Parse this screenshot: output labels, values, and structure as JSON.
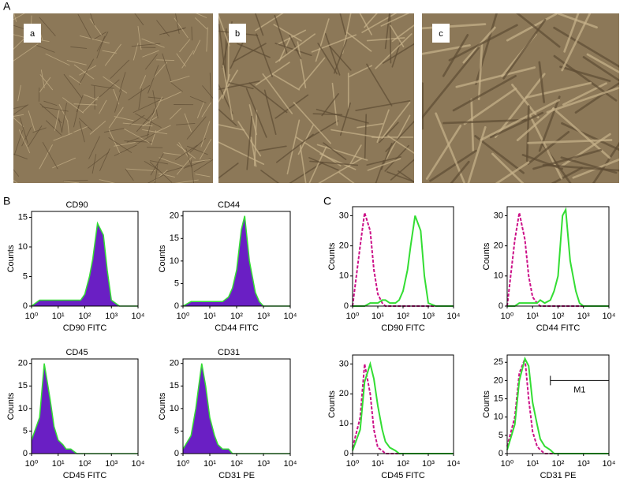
{
  "figure": {
    "panel_labels": [
      "A",
      "B",
      "C"
    ],
    "image_labels": [
      "a",
      "b",
      "c"
    ]
  },
  "chart_data": [
    {
      "type": "area",
      "title": "CD90",
      "x_label": "CD90 FITC",
      "y_label": "Counts",
      "log_x": true,
      "xlim": [
        1,
        10000
      ],
      "xticks": [
        {
          "value": 1,
          "label": "10⁰"
        },
        {
          "value": 10,
          "label": "10¹"
        },
        {
          "value": 100,
          "label": "10²"
        },
        {
          "value": 1000,
          "label": "10³"
        },
        {
          "value": 10000,
          "label": "10⁴"
        }
      ],
      "ylim": [
        0,
        16
      ],
      "yticks": [
        0,
        5,
        10,
        15
      ],
      "x": [
        1,
        2,
        3,
        5,
        7,
        10,
        15,
        20,
        30,
        50,
        70,
        100,
        150,
        200,
        300,
        500,
        700,
        1000,
        2000,
        5000,
        10000
      ],
      "series": [
        {
          "color": "#33dd33",
          "fill": "#6a1fc4",
          "values": [
            0,
            1,
            1,
            1,
            1,
            1,
            1,
            1,
            1,
            1,
            1,
            2,
            5,
            8,
            14,
            12,
            6,
            1,
            0,
            0,
            0
          ]
        }
      ]
    },
    {
      "type": "area",
      "title": "CD44",
      "x_label": "CD44 FITC",
      "y_label": "Counts",
      "log_x": true,
      "xlim": [
        1,
        10000
      ],
      "xticks": [
        {
          "value": 1,
          "label": "10⁰"
        },
        {
          "value": 10,
          "label": "10¹"
        },
        {
          "value": 100,
          "label": "10²"
        },
        {
          "value": 1000,
          "label": "10³"
        },
        {
          "value": 10000,
          "label": "10⁴"
        }
      ],
      "ylim": [
        0,
        21
      ],
      "yticks": [
        0,
        5,
        10,
        15,
        20
      ],
      "x": [
        1,
        2,
        3,
        5,
        7,
        10,
        15,
        20,
        30,
        50,
        70,
        100,
        150,
        200,
        300,
        500,
        700,
        1000,
        2000,
        5000,
        10000
      ],
      "series": [
        {
          "color": "#33dd33",
          "fill": "#6a1fc4",
          "values": [
            0,
            1,
            1,
            1,
            1,
            1,
            1,
            1,
            1,
            2,
            4,
            8,
            17,
            20,
            10,
            3,
            1,
            0,
            0,
            0,
            0
          ]
        }
      ]
    },
    {
      "type": "area",
      "title": "CD45",
      "x_label": "CD45 FITC",
      "y_label": "Counts",
      "log_x": true,
      "xlim": [
        1,
        10000
      ],
      "xticks": [
        {
          "value": 1,
          "label": "10⁰"
        },
        {
          "value": 10,
          "label": "10¹"
        },
        {
          "value": 100,
          "label": "10²"
        },
        {
          "value": 1000,
          "label": "10³"
        },
        {
          "value": 10000,
          "label": "10⁴"
        }
      ],
      "ylim": [
        0,
        21
      ],
      "yticks": [
        0,
        5,
        10,
        15,
        20
      ],
      "x": [
        1,
        2,
        3,
        5,
        7,
        10,
        15,
        20,
        30,
        50,
        70,
        100,
        150,
        200,
        300,
        500,
        700,
        1000,
        2000,
        5000,
        10000
      ],
      "series": [
        {
          "color": "#33dd33",
          "fill": "#6a1fc4",
          "values": [
            3,
            8,
            20,
            12,
            6,
            3,
            2,
            1,
            1,
            0,
            0,
            0,
            0,
            0,
            0,
            0,
            0,
            0,
            0,
            0,
            0
          ]
        }
      ]
    },
    {
      "type": "area",
      "title": "CD31",
      "x_label": "CD31 PE",
      "y_label": "Counts",
      "log_x": true,
      "xlim": [
        1,
        10000
      ],
      "xticks": [
        {
          "value": 1,
          "label": "10⁰"
        },
        {
          "value": 10,
          "label": "10¹"
        },
        {
          "value": 100,
          "label": "10²"
        },
        {
          "value": 1000,
          "label": "10³"
        },
        {
          "value": 10000,
          "label": "10⁴"
        }
      ],
      "ylim": [
        0,
        21
      ],
      "yticks": [
        0,
        5,
        10,
        15,
        20
      ],
      "x": [
        1,
        2,
        3,
        5,
        7,
        10,
        15,
        20,
        30,
        50,
        70,
        100,
        150,
        200,
        300,
        500,
        700,
        1000,
        2000,
        5000,
        10000
      ],
      "series": [
        {
          "color": "#33dd33",
          "fill": "#6a1fc4",
          "values": [
            1,
            4,
            10,
            20,
            15,
            8,
            4,
            2,
            1,
            1,
            0,
            0,
            0,
            0,
            0,
            0,
            0,
            0,
            0,
            0,
            0
          ]
        }
      ]
    },
    {
      "type": "line",
      "x_label": "CD90 FITC",
      "y_label": "Counts",
      "log_x": true,
      "xlim": [
        1,
        10000
      ],
      "xticks": [
        {
          "value": 1,
          "label": "10⁰"
        },
        {
          "value": 10,
          "label": "10¹"
        },
        {
          "value": 100,
          "label": "10²"
        },
        {
          "value": 1000,
          "label": "10³"
        },
        {
          "value": 10000,
          "label": "10⁴"
        }
      ],
      "ylim": [
        0,
        33
      ],
      "yticks": [
        0,
        10,
        20,
        30
      ],
      "x": [
        1,
        2,
        3,
        5,
        7,
        10,
        15,
        20,
        30,
        50,
        70,
        100,
        150,
        200,
        300,
        500,
        700,
        1000,
        2000,
        5000,
        10000
      ],
      "series": [
        {
          "color": "#cc1188",
          "dashed": true,
          "values": [
            0,
            20,
            31,
            25,
            12,
            4,
            1,
            0,
            0,
            0,
            0,
            0,
            0,
            0,
            0,
            0,
            0,
            0,
            0,
            0,
            0
          ]
        },
        {
          "color": "#33dd33",
          "values": [
            0,
            0,
            0,
            1,
            1,
            1,
            2,
            2,
            1,
            1,
            2,
            5,
            12,
            20,
            30,
            25,
            10,
            1,
            0,
            0,
            0
          ]
        }
      ]
    },
    {
      "type": "line",
      "x_label": "CD44 FITC",
      "y_label": "Counts",
      "log_x": true,
      "xlim": [
        1,
        10000
      ],
      "xticks": [
        {
          "value": 1,
          "label": "10⁰"
        },
        {
          "value": 10,
          "label": "10¹"
        },
        {
          "value": 100,
          "label": "10²"
        },
        {
          "value": 1000,
          "label": "10³"
        },
        {
          "value": 10000,
          "label": "10⁴"
        }
      ],
      "ylim": [
        0,
        33
      ],
      "yticks": [
        0,
        10,
        20,
        30
      ],
      "x": [
        1,
        2,
        3,
        5,
        7,
        10,
        15,
        20,
        30,
        50,
        70,
        100,
        150,
        200,
        300,
        500,
        700,
        1000,
        2000,
        5000,
        10000
      ],
      "series": [
        {
          "color": "#cc1188",
          "dashed": true,
          "values": [
            0,
            22,
            31,
            22,
            10,
            3,
            1,
            0,
            0,
            0,
            0,
            0,
            0,
            0,
            0,
            0,
            0,
            0,
            0,
            0,
            0
          ]
        },
        {
          "color": "#33dd33",
          "values": [
            0,
            0,
            1,
            1,
            1,
            1,
            1,
            2,
            1,
            2,
            5,
            10,
            30,
            32,
            15,
            5,
            1,
            0,
            0,
            0,
            0
          ]
        }
      ]
    },
    {
      "type": "line",
      "x_label": "CD45 FITC",
      "y_label": "Counts",
      "log_x": true,
      "xlim": [
        1,
        10000
      ],
      "xticks": [
        {
          "value": 1,
          "label": "10⁰"
        },
        {
          "value": 10,
          "label": "10¹"
        },
        {
          "value": 100,
          "label": "10²"
        },
        {
          "value": 1000,
          "label": "10³"
        },
        {
          "value": 10000,
          "label": "10⁴"
        }
      ],
      "ylim": [
        0,
        33
      ],
      "yticks": [
        0,
        10,
        20,
        30
      ],
      "x": [
        1,
        2,
        3,
        5,
        7,
        10,
        15,
        20,
        30,
        50,
        70,
        100,
        150,
        200,
        300,
        500,
        700,
        1000,
        2000,
        5000,
        10000
      ],
      "series": [
        {
          "color": "#cc1188",
          "dashed": true,
          "values": [
            2,
            12,
            30,
            20,
            8,
            2,
            1,
            0,
            0,
            0,
            0,
            0,
            0,
            0,
            0,
            0,
            0,
            0,
            0,
            0,
            0
          ]
        },
        {
          "color": "#33dd33",
          "values": [
            1,
            8,
            24,
            30,
            25,
            16,
            8,
            4,
            2,
            1,
            0,
            0,
            0,
            0,
            0,
            0,
            0,
            0,
            0,
            0,
            0
          ]
        }
      ]
    },
    {
      "type": "line",
      "x_label": "CD31 PE",
      "y_label": "Counts",
      "log_x": true,
      "xlim": [
        1,
        10000
      ],
      "xticks": [
        {
          "value": 1,
          "label": "10⁰"
        },
        {
          "value": 10,
          "label": "10¹"
        },
        {
          "value": 100,
          "label": "10²"
        },
        {
          "value": 1000,
          "label": "10³"
        },
        {
          "value": 10000,
          "label": "10⁴"
        }
      ],
      "ylim": [
        0,
        27
      ],
      "yticks": [
        0,
        5,
        10,
        15,
        20,
        25
      ],
      "x": [
        1,
        2,
        3,
        5,
        7,
        10,
        15,
        20,
        30,
        50,
        70,
        100,
        150,
        200,
        300,
        500,
        700,
        1000,
        2000,
        5000,
        10000
      ],
      "series": [
        {
          "color": "#cc1188",
          "dashed": true,
          "values": [
            2,
            10,
            22,
            26,
            15,
            6,
            2,
            1,
            0,
            0,
            0,
            0,
            0,
            0,
            0,
            0,
            0,
            0,
            0,
            0,
            0
          ]
        },
        {
          "color": "#33dd33",
          "values": [
            1,
            8,
            20,
            26,
            24,
            14,
            8,
            4,
            2,
            1,
            0,
            0,
            0,
            0,
            0,
            0,
            0,
            0,
            0,
            0,
            0
          ]
        }
      ],
      "annotation": {
        "text": "M1",
        "x": [
          50,
          10000
        ],
        "y": 20
      }
    }
  ]
}
